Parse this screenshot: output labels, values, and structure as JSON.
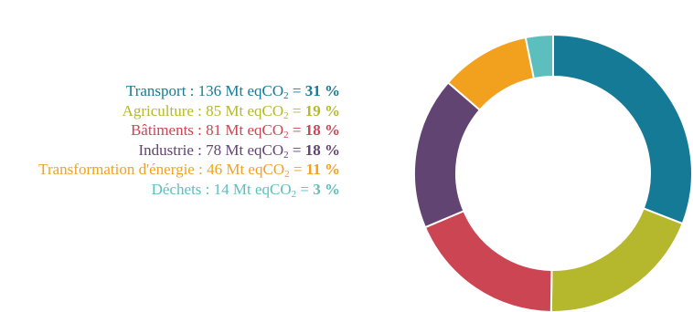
{
  "chart_data": {
    "type": "pie",
    "variant": "donut",
    "unit": "Mt eqCO",
    "unit_subscript": "2",
    "slices": [
      {
        "label": "Transport",
        "value": 136,
        "percent_label": "31 %",
        "color": "#157a96"
      },
      {
        "label": "Agriculture",
        "value": 85,
        "percent_label": "19 %",
        "color": "#b5b72c"
      },
      {
        "label": "Bâtiments",
        "value": 81,
        "percent_label": "18 %",
        "color": "#cc4553"
      },
      {
        "label": "Industrie",
        "value": 78,
        "percent_label": "18 %",
        "color": "#614472"
      },
      {
        "label": "Transformation d'énergie",
        "value": 46,
        "percent_label": "11 %",
        "color": "#f2a11f"
      },
      {
        "label": "Déchets",
        "value": 14,
        "percent_label": "3 %",
        "color": "#5cbfbe"
      }
    ],
    "legend_placement": "left"
  }
}
